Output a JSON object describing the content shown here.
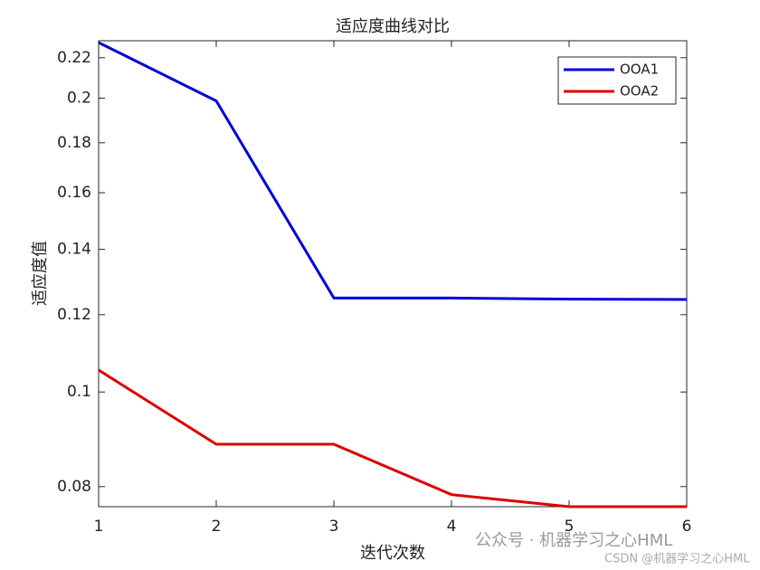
{
  "chart_data": {
    "type": "line",
    "title": "适应度曲线对比",
    "xlabel": "迭代次数",
    "ylabel": "适应度值",
    "x": [
      1,
      2,
      3,
      4,
      5,
      6
    ],
    "series": [
      {
        "name": "OOA1",
        "color": "#0000dd",
        "values": [
          0.228,
          0.1987,
          0.1248,
          0.1248,
          0.1245,
          0.1244
        ]
      },
      {
        "name": "OOA2",
        "color": "#dd0000",
        "values": [
          0.1053,
          0.0884,
          0.0884,
          0.0785,
          0.0763,
          0.0763
        ]
      }
    ],
    "xlim": [
      1,
      6
    ],
    "xticks": [
      1,
      2,
      3,
      4,
      5,
      6
    ],
    "ylim": [
      0.0763,
      0.229
    ],
    "yticks": [
      0.08,
      0.1,
      0.12,
      0.14,
      0.16,
      0.18,
      0.2,
      0.22
    ],
    "ylog": true,
    "legend": "northeast"
  },
  "watermark": [
    "公众号 · 机器学习之心HML",
    "CSDN @机器学习之心HML"
  ]
}
